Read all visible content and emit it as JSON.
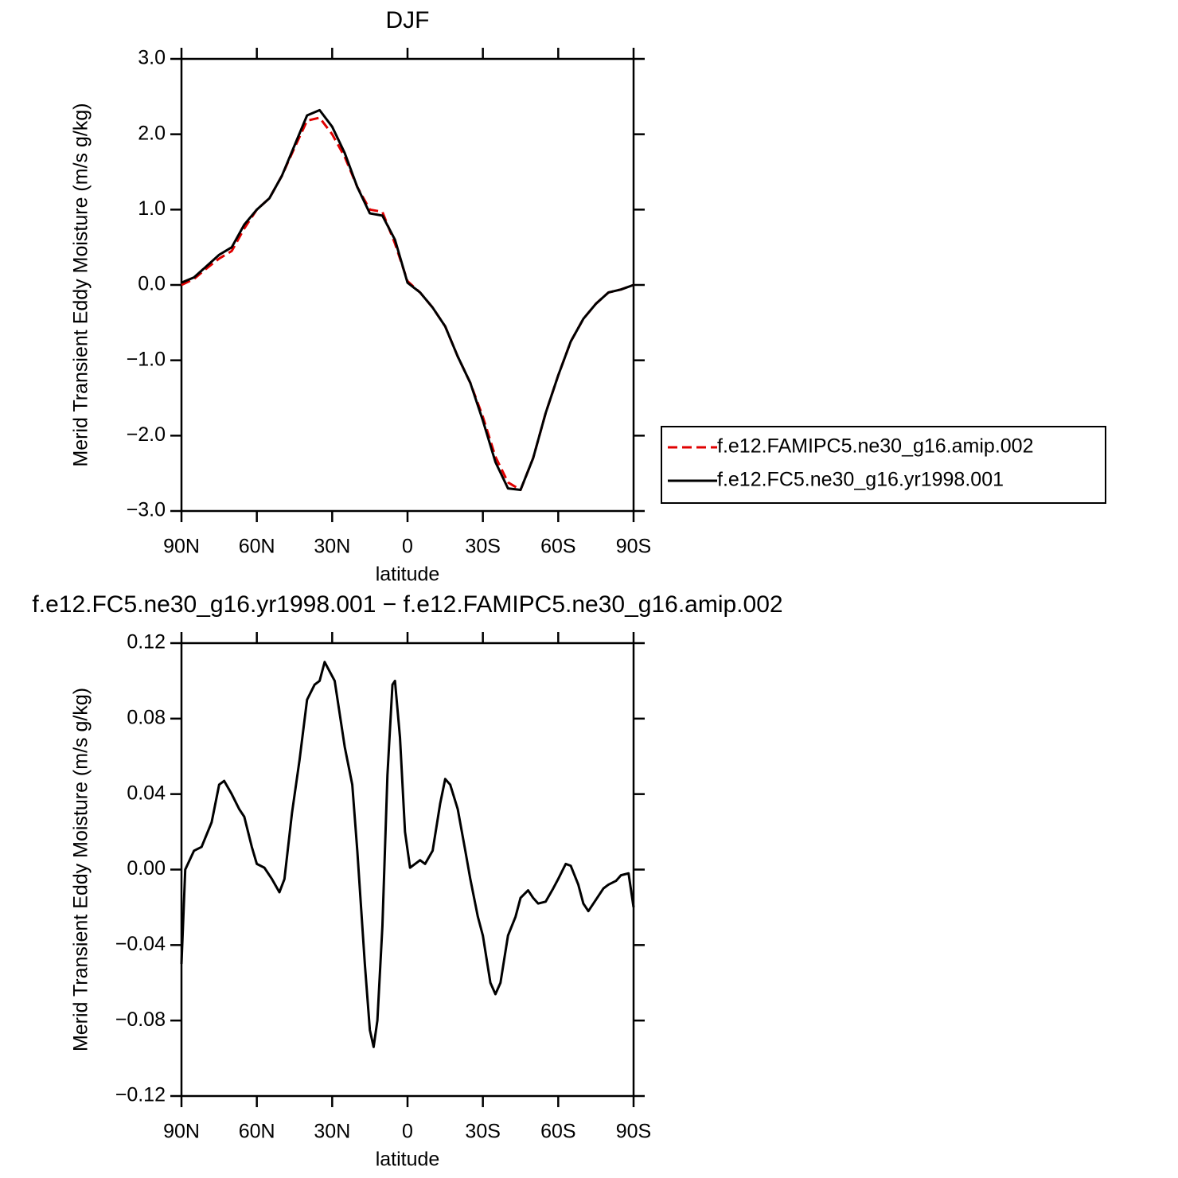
{
  "chart_data": [
    {
      "type": "line",
      "title": "DJF",
      "xlabel": "latitude",
      "ylabel": "Merid Transient Eddy Moisture (m/s g/kg)",
      "x": [
        90,
        85,
        80,
        75,
        70,
        65,
        60,
        55,
        50,
        45,
        40,
        35,
        30,
        25,
        20,
        15,
        10,
        5,
        0,
        -5,
        -10,
        -15,
        -20,
        -25,
        -30,
        -35,
        -40,
        -45,
        -50,
        -55,
        -60,
        -65,
        -70,
        -75,
        -80,
        -85,
        -90
      ],
      "series": [
        {
          "name": "f.e12.FAMIPC5.ne30_g16.amip.002",
          "color": "#e00000",
          "linestyle": "dashed",
          "values": [
            0.0,
            0.08,
            0.22,
            0.35,
            0.45,
            0.75,
            1.0,
            1.15,
            1.45,
            1.82,
            2.18,
            2.22,
            2.0,
            1.7,
            1.3,
            1.0,
            0.97,
            0.55,
            0.05,
            -0.1,
            -0.3,
            -0.55,
            -0.95,
            -1.3,
            -1.75,
            -2.28,
            -2.62,
            -2.72,
            -2.3,
            -1.7,
            -1.2,
            -0.75,
            -0.45,
            -0.25,
            -0.1,
            -0.06,
            0.0
          ]
        },
        {
          "name": "f.e12.FC5.ne30_g16.yr1998.001",
          "color": "#000000",
          "linestyle": "solid",
          "values": [
            0.03,
            0.1,
            0.25,
            0.4,
            0.5,
            0.8,
            1.0,
            1.15,
            1.45,
            1.85,
            2.25,
            2.32,
            2.1,
            1.75,
            1.3,
            0.95,
            0.92,
            0.6,
            0.03,
            -0.1,
            -0.3,
            -0.55,
            -0.95,
            -1.3,
            -1.8,
            -2.35,
            -2.7,
            -2.72,
            -2.3,
            -1.7,
            -1.2,
            -0.75,
            -0.45,
            -0.25,
            -0.1,
            -0.06,
            0.0
          ]
        }
      ],
      "xlim": [
        90,
        -90
      ],
      "xticks": [
        {
          "value": 90,
          "label": "90N"
        },
        {
          "value": 60,
          "label": "60N"
        },
        {
          "value": 30,
          "label": "30N"
        },
        0,
        {
          "value": -30,
          "label": "30S"
        },
        {
          "value": -60,
          "label": "60S"
        },
        {
          "value": -90,
          "label": "90S"
        }
      ],
      "ylim": [
        -3,
        3
      ],
      "yticks": [
        {
          "value": 3,
          "label": "3.0"
        },
        {
          "value": 2,
          "label": "2.0"
        },
        {
          "value": 1,
          "label": "1.0"
        },
        {
          "value": 0,
          "label": "0.0"
        },
        {
          "value": -1,
          "label": "−1.0"
        },
        {
          "value": -2,
          "label": "−2.0"
        },
        {
          "value": -3,
          "label": "−3.0"
        }
      ],
      "legend": "right"
    },
    {
      "type": "line",
      "title": "f.e12.FC5.ne30_g16.yr1998.001 − f.e12.FAMIPC5.ne30_g16.amip.002",
      "xlabel": "latitude",
      "ylabel": "Merid Transient Eddy Moisture (m/s g/kg)",
      "x": [
        90,
        88.5,
        85,
        82,
        78,
        75,
        73,
        70,
        67,
        65,
        62,
        60,
        57,
        54,
        51,
        49,
        46,
        43,
        40,
        37,
        35,
        33,
        31,
        29,
        25,
        22,
        20,
        17,
        15,
        13.5,
        12,
        10,
        8,
        6,
        5,
        3,
        1,
        -1,
        -3,
        -5,
        -7,
        -10,
        -13,
        -15,
        -17,
        -20,
        -23,
        -25,
        -28,
        -30,
        -33,
        -35,
        -37,
        -40,
        -43,
        -45,
        -48,
        -50,
        -52,
        -55,
        -58,
        -60,
        -63,
        -65,
        -68,
        -70,
        -72,
        -75,
        -78,
        -80,
        -83,
        -85,
        -88,
        -90
      ],
      "values": [
        -0.05,
        0.0,
        0.01,
        0.012,
        0.025,
        0.045,
        0.047,
        0.04,
        0.032,
        0.028,
        0.012,
        0.003,
        0.001,
        -0.005,
        -0.012,
        -0.005,
        0.03,
        0.058,
        0.09,
        0.098,
        0.1,
        0.11,
        0.105,
        0.1,
        0.065,
        0.045,
        0.01,
        -0.05,
        -0.085,
        -0.094,
        -0.08,
        -0.03,
        0.05,
        0.098,
        0.1,
        0.07,
        0.02,
        0.001,
        0.003,
        0.005,
        0.003,
        0.01,
        0.035,
        0.048,
        0.045,
        0.032,
        0.01,
        -0.005,
        -0.025,
        -0.035,
        -0.06,
        -0.066,
        -0.06,
        -0.035,
        -0.025,
        -0.015,
        -0.011,
        -0.015,
        -0.018,
        -0.017,
        -0.01,
        -0.005,
        0.003,
        0.002,
        -0.008,
        -0.018,
        -0.022,
        -0.016,
        -0.01,
        -0.008,
        -0.006,
        -0.003,
        -0.002,
        -0.02
      ],
      "color": "#000000",
      "xlim": [
        90,
        -90
      ],
      "xticks": [
        {
          "value": 90,
          "label": "90N"
        },
        {
          "value": 60,
          "label": "60N"
        },
        {
          "value": 30,
          "label": "30N"
        },
        0,
        {
          "value": -30,
          "label": "30S"
        },
        {
          "value": -60,
          "label": "60S"
        },
        {
          "value": -90,
          "label": "90S"
        }
      ],
      "ylim": [
        -0.12,
        0.12
      ],
      "yticks": [
        0.12,
        0.08,
        0.04,
        {
          "value": 0,
          "label": "0.00"
        },
        {
          "value": -0.04,
          "label": "−0.04"
        },
        {
          "value": -0.08,
          "label": "−0.08"
        },
        {
          "value": -0.12,
          "label": "−0.12"
        }
      ]
    }
  ]
}
